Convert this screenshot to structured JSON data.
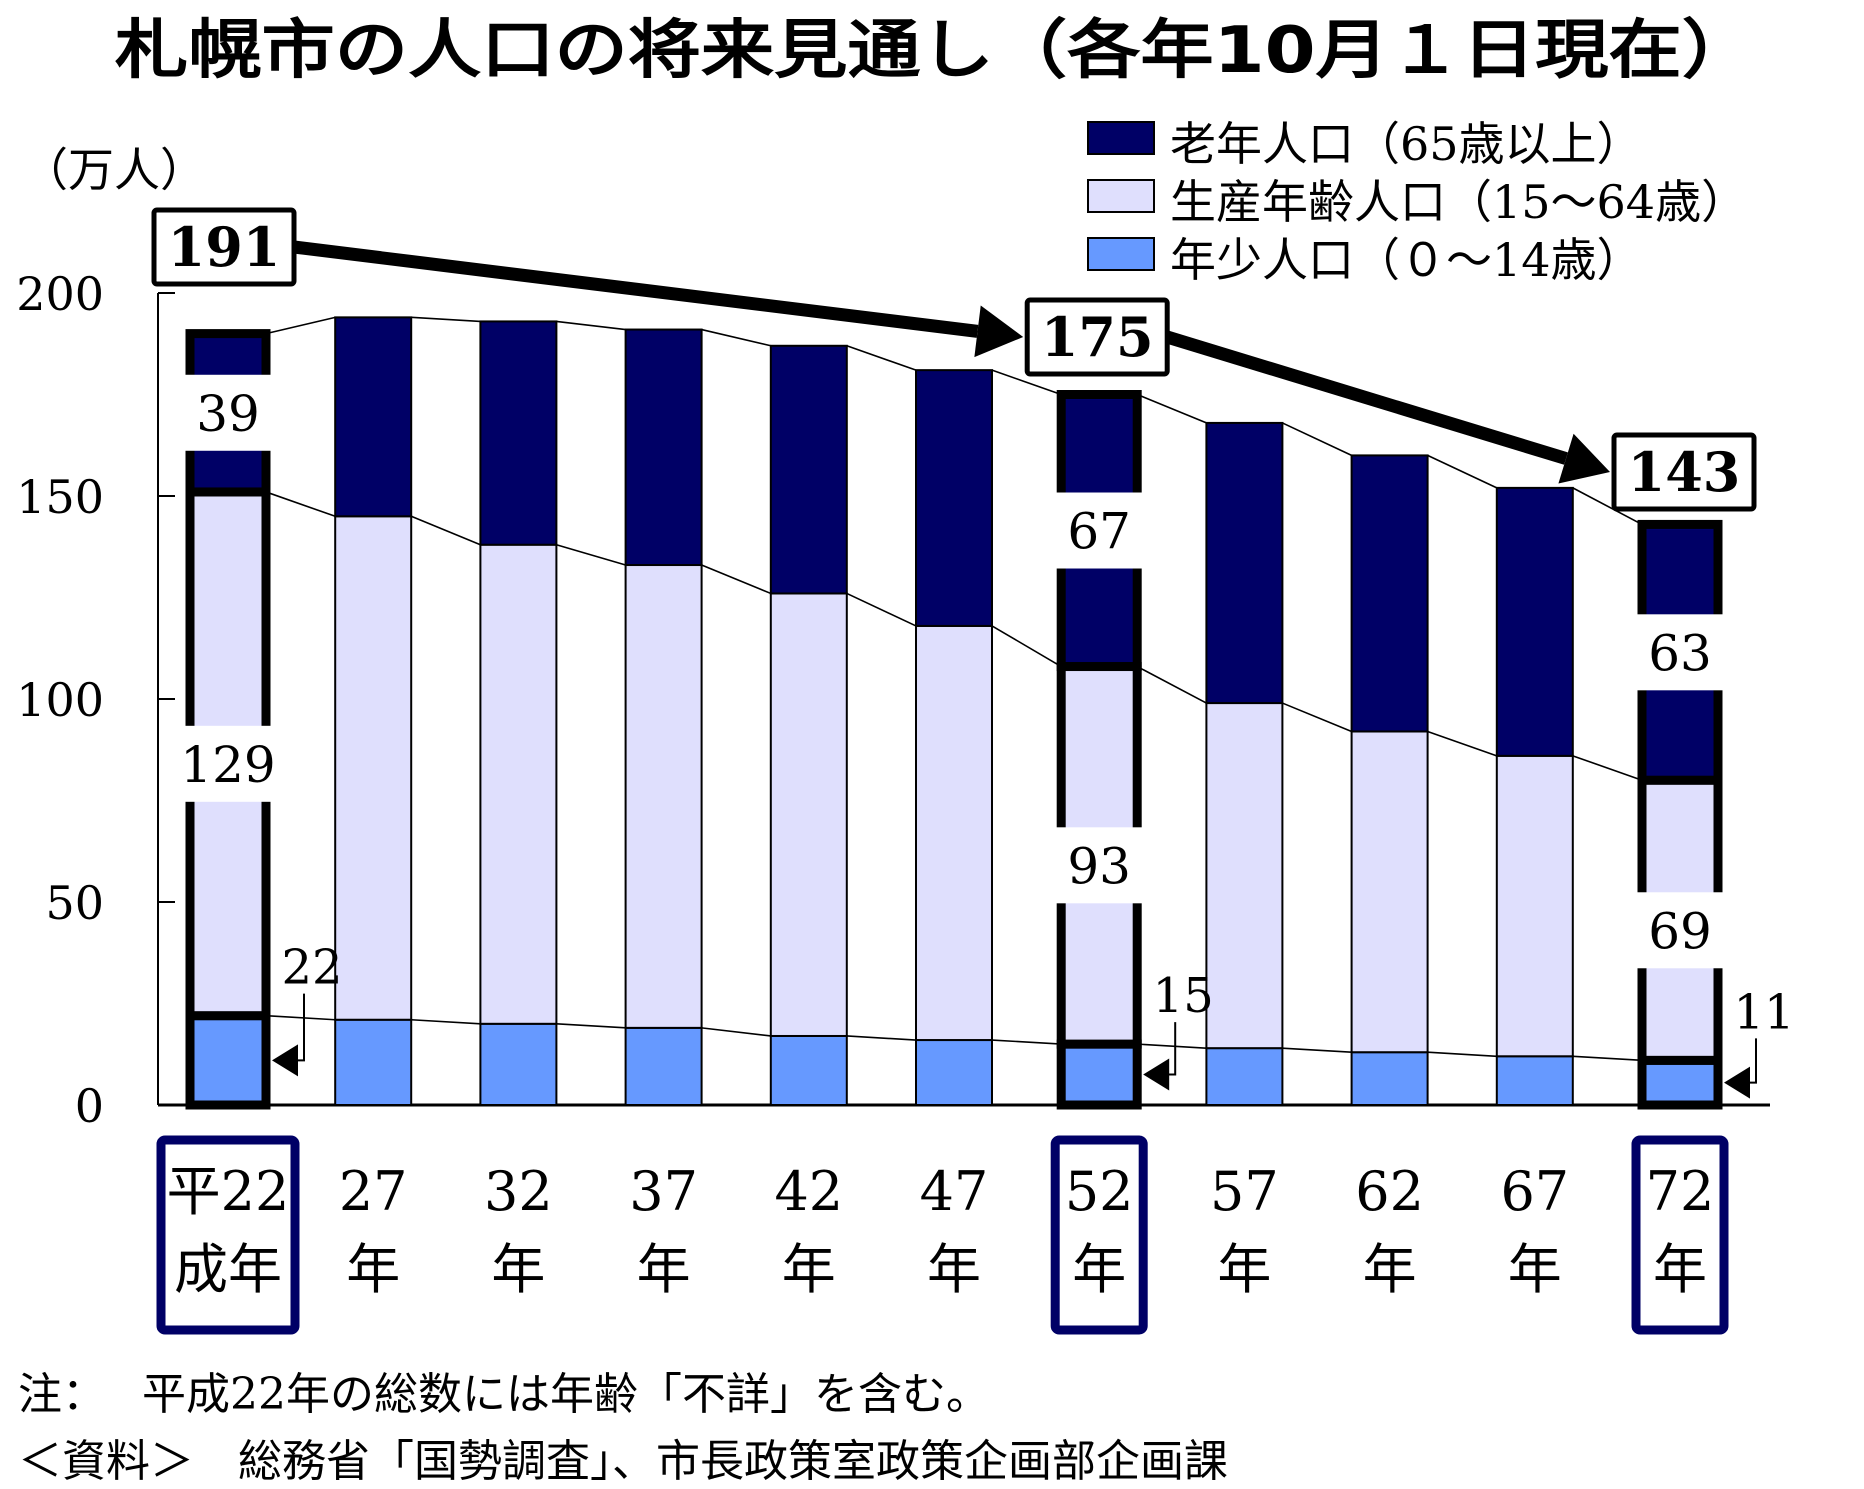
{
  "title": "札幌市の人口の将来見通し（各年10月１日現在）",
  "colors": {
    "old": "#000066",
    "working": "#DFDFFD",
    "young": "#6699FF",
    "highlight_box": "#000066"
  },
  "chart_data": {
    "type": "bar",
    "stacked": true,
    "title": "札幌市の人口の将来見通し（各年10月１日現在）",
    "ylabel": "（万人）",
    "xlabel": "",
    "ylim": [
      0,
      200
    ],
    "yticks": [
      "0",
      "50",
      "100",
      "150",
      "200"
    ],
    "ytick_values": [
      0,
      50,
      100,
      150,
      200
    ],
    "categories": [
      {
        "line1": "平22",
        "line2": "成年",
        "highlighted": true
      },
      {
        "line1": "27",
        "line2": "年",
        "highlighted": false
      },
      {
        "line1": "32",
        "line2": "年",
        "highlighted": false
      },
      {
        "line1": "37",
        "line2": "年",
        "highlighted": false
      },
      {
        "line1": "42",
        "line2": "年",
        "highlighted": false
      },
      {
        "line1": "47",
        "line2": "年",
        "highlighted": false
      },
      {
        "line1": "52",
        "line2": "年",
        "highlighted": true
      },
      {
        "line1": "57",
        "line2": "年",
        "highlighted": false
      },
      {
        "line1": "62",
        "line2": "年",
        "highlighted": false
      },
      {
        "line1": "67",
        "line2": "年",
        "highlighted": false
      },
      {
        "line1": "72",
        "line2": "年",
        "highlighted": true
      }
    ],
    "series": [
      {
        "key": "young",
        "name": "年少人口（０～14歳）",
        "color": "#6699FF",
        "values": [
          22,
          21,
          20,
          19,
          17,
          16,
          15,
          14,
          13,
          12,
          11
        ]
      },
      {
        "key": "working",
        "name": "生産年齢人口（15～64歳）",
        "color": "#DFDFFD",
        "values": [
          129,
          124,
          118,
          114,
          109,
          102,
          93,
          85,
          79,
          74,
          69
        ]
      },
      {
        "key": "old",
        "name": "老年人口（65歳以上）",
        "color": "#000066",
        "values": [
          39,
          49,
          55,
          58,
          61,
          63,
          67,
          69,
          68,
          66,
          63
        ]
      }
    ],
    "totals_shown": [
      {
        "index": 0,
        "label": "191"
      },
      {
        "index": 6,
        "label": "175"
      },
      {
        "index": 10,
        "label": "143"
      }
    ],
    "segment_labels": [
      {
        "index": 0,
        "old": "39",
        "working": "129",
        "young": "22"
      },
      {
        "index": 6,
        "old": "67",
        "working": "93",
        "young": "15"
      },
      {
        "index": 10,
        "old": "63",
        "working": "69",
        "young": "11"
      }
    ],
    "legend": {
      "position": "top-right",
      "entries": [
        "老年人口（65歳以上）",
        "生産年齢人口（15～64歳）",
        "年少人口（０～14歳）"
      ]
    },
    "grid": false
  },
  "notes": {
    "line1": "注：　 平成22年の総数には年齢「不詳」を含む。",
    "line2": "＜資料＞　総務省「国勢調査」、市長政策室政策企画部企画課"
  }
}
